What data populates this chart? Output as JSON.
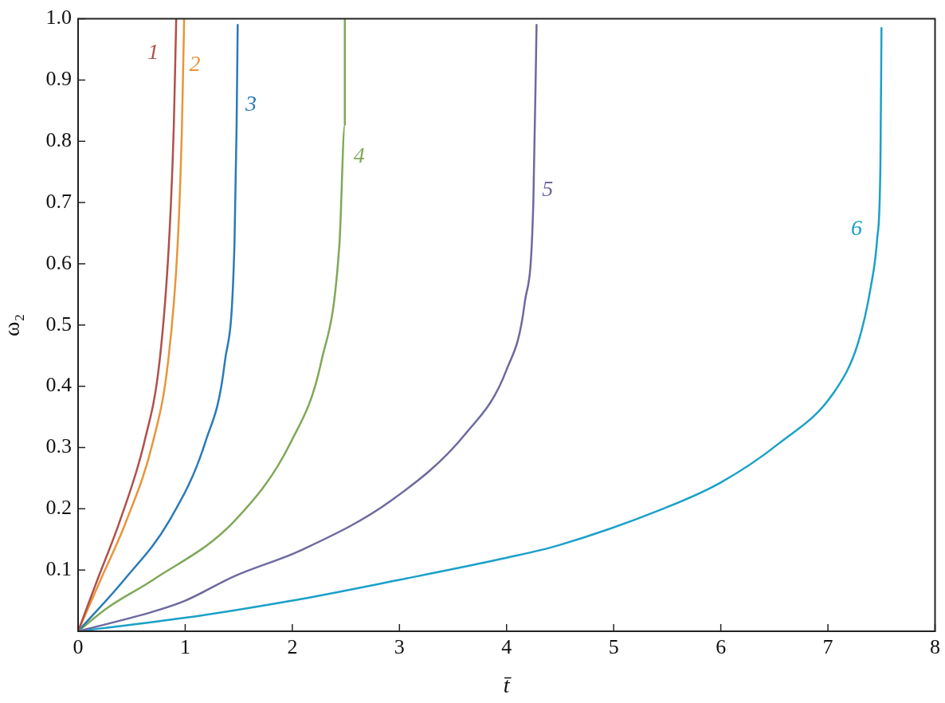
{
  "chart_data": {
    "type": "line",
    "xlabel": "t̄",
    "ylabel": "ω₂",
    "xlim": [
      0,
      8
    ],
    "ylim": [
      0,
      1
    ],
    "xticks": [
      0,
      1,
      2,
      3,
      4,
      5,
      6,
      7,
      8
    ],
    "yticks": [
      0.1,
      0.2,
      0.3,
      0.4,
      0.5,
      0.6,
      0.7,
      0.8,
      0.9,
      {
        "value": 1,
        "label": "1.0"
      }
    ],
    "grid": false,
    "legend": false,
    "marker": "none",
    "line_style": "solid",
    "series": [
      {
        "name": "1",
        "color": "#b0504a",
        "x": [
          0,
          0.18,
          0.39,
          0.62,
          0.76,
          0.848,
          0.894,
          0.916
        ],
        "values": [
          0,
          0.084,
          0.18,
          0.31,
          0.44,
          0.633,
          0.827,
          1.0
        ]
      },
      {
        "name": "2",
        "color": "#e8953a",
        "x": [
          0,
          0.21,
          0.45,
          0.7,
          0.84,
          0.93,
          0.97,
          0.99
        ],
        "values": [
          0,
          0.084,
          0.18,
          0.31,
          0.44,
          0.633,
          0.827,
          1.0
        ]
      },
      {
        "name": "3",
        "color": "#2a7ab8",
        "x": [
          0,
          0.43,
          0.85,
          1.19,
          1.37,
          1.46,
          1.48,
          1.49
        ],
        "values": [
          0,
          0.084,
          0.18,
          0.31,
          0.44,
          0.633,
          0.827,
          0.99
        ]
      },
      {
        "name": "4",
        "color": "#7fa857",
        "x": [
          0,
          0.28,
          0.7,
          1.46,
          1.99,
          2.27,
          2.44,
          2.49,
          2.49
        ],
        "values": [
          0,
          0.039,
          0.084,
          0.18,
          0.31,
          0.44,
          0.633,
          0.827,
          1.0
        ]
      },
      {
        "name": "5",
        "color": "#6c69a0",
        "x": [
          0,
          0.7,
          1.0,
          1.46,
          2.09,
          2.92,
          3.62,
          4.0,
          4.17,
          4.25,
          4.28
        ],
        "values": [
          0,
          0.032,
          0.05,
          0.09,
          0.133,
          0.213,
          0.323,
          0.427,
          0.537,
          0.7,
          0.99
        ]
      },
      {
        "name": "6",
        "color": "#1aa0c8",
        "x": [
          0,
          1,
          2,
          3,
          4,
          4.48,
          5.46,
          5.99,
          6.53,
          7.06,
          7.28,
          7.4,
          7.46,
          7.49,
          7.5
        ],
        "values": [
          0,
          0.022,
          0.05,
          0.084,
          0.12,
          0.14,
          0.2,
          0.242,
          0.305,
          0.391,
          0.47,
          0.562,
          0.641,
          0.76,
          0.985
        ]
      }
    ]
  }
}
